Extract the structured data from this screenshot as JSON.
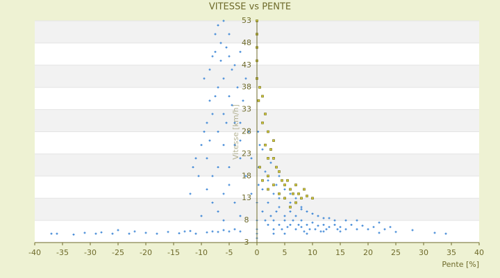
{
  "chart_data": {
    "type": "scatter",
    "title": "VITESSE vs PENTE",
    "x_label": "Pente [%]",
    "y_label": "Vitesse [km/h]",
    "xlim": [
      -40,
      40
    ],
    "xticks": [
      -40,
      -35,
      -30,
      -25,
      -20,
      -15,
      -10,
      -5,
      0,
      5,
      10,
      15,
      20,
      25,
      30,
      35,
      40
    ],
    "ylim": [
      3,
      53
    ],
    "yticks": [
      3,
      8,
      13,
      18,
      23,
      28,
      33,
      38,
      43,
      48,
      53
    ],
    "grid": true,
    "series": [
      {
        "color": "#3d86d6",
        "x": [
          -37,
          -36,
          -33,
          -31,
          -29,
          -28,
          -26,
          -25,
          -23,
          -22,
          -20,
          -18,
          -16,
          -14,
          -13,
          -12,
          -11,
          -9,
          -8,
          -7,
          -6,
          -5,
          -4,
          -3,
          22,
          25,
          28,
          32,
          34,
          -9,
          -8.5,
          -8,
          -7.5,
          -7,
          -6.5,
          -6,
          -5.5,
          -5,
          -4.5,
          -6,
          -7,
          -8,
          -9.5,
          -10,
          -11,
          -11.5,
          -10.5,
          -9,
          -8,
          -7,
          -6,
          -5,
          -4,
          -3,
          -2.5,
          -3.5,
          -4,
          -5,
          -6.5,
          -7.5,
          -8.5,
          -9,
          -7,
          -6,
          -5,
          -4,
          -3,
          -2,
          -1.5,
          -2,
          -3,
          -6,
          -7,
          -8,
          -5,
          -4,
          -3,
          -6,
          -10,
          -12,
          -9.5,
          -8.5,
          -7.5,
          -5.5,
          -4.5,
          -3,
          -1,
          -1,
          0,
          0,
          0,
          0,
          0,
          0.3,
          0.3,
          0.5,
          0.2,
          1,
          1.5,
          2,
          2,
          2.5,
          3,
          3,
          3.5,
          4,
          4,
          4.5,
          5,
          5,
          5.5,
          6,
          6,
          6.5,
          7,
          7,
          7.5,
          8,
          8,
          8.5,
          9,
          9.5,
          10,
          10.5,
          11,
          11.5,
          12,
          12.5,
          13,
          14,
          14.5,
          15,
          16,
          17,
          18,
          19,
          20,
          21,
          22,
          23,
          24,
          3,
          4,
          2,
          1.5,
          2.5,
          3.5,
          5,
          6,
          7,
          8,
          9,
          10,
          11,
          12,
          13,
          14,
          16,
          18,
          1,
          1,
          4,
          6,
          8,
          3,
          5,
          9,
          12,
          15
        ],
        "values": [
          5,
          5,
          4.8,
          5.2,
          5,
          5.3,
          5,
          5.8,
          5,
          5.5,
          5.2,
          5,
          5.4,
          5.1,
          5.5,
          5.6,
          5,
          5.3,
          5.5,
          5.4,
          5.8,
          5.5,
          6,
          5.5,
          5.2,
          5.4,
          5.8,
          5.2,
          5,
          30,
          35,
          45,
          50,
          52,
          48,
          53,
          47,
          45,
          42,
          40,
          38,
          32,
          28,
          25,
          22,
          20,
          18,
          15,
          12,
          10,
          14,
          20,
          25,
          30,
          35,
          38,
          43,
          50,
          44,
          36,
          26,
          22,
          28,
          32,
          36,
          30,
          22,
          18,
          28,
          40,
          46,
          25,
          20,
          18,
          16,
          12,
          9,
          8,
          9,
          14,
          40,
          42,
          46,
          30,
          34,
          26,
          14,
          22,
          4,
          5,
          6,
          8,
          12,
          16,
          20,
          25,
          28,
          10,
          8,
          7,
          12,
          9,
          6,
          8,
          10,
          7,
          11,
          6,
          8,
          9,
          6.5,
          7,
          10,
          8,
          6,
          9,
          7,
          6.5,
          8,
          5.5,
          7,
          6,
          7.5,
          6,
          6.8,
          5.5,
          7,
          6,
          6.5,
          7,
          6,
          6.5,
          6,
          7,
          6,
          6.8,
          6,
          6.5,
          7.5,
          6,
          6.5,
          14,
          13,
          17,
          19,
          21,
          16,
          15,
          12,
          13,
          11,
          10,
          9.5,
          9,
          8.5,
          8.5,
          8,
          8,
          8,
          24,
          15,
          18,
          14,
          10.5,
          5,
          5,
          5,
          5.5,
          5.5
        ]
      },
      {
        "color": "#d4cc3a",
        "x": [
          0,
          0,
          0,
          0,
          0,
          0.5,
          0.3,
          1,
          1.5,
          1,
          2,
          1.5,
          2.5,
          3,
          3.5,
          2,
          4,
          4.5,
          5,
          5.5,
          6,
          6.5,
          7,
          7.5,
          8,
          8.5,
          9,
          10,
          7,
          6,
          5,
          4,
          3,
          2,
          1,
          0.5,
          3,
          2
        ],
        "values": [
          53,
          50,
          47,
          44,
          40,
          38,
          35,
          36,
          32,
          30,
          28,
          25,
          24,
          22,
          20,
          18,
          19,
          17,
          16,
          17,
          15,
          14,
          16,
          14,
          13,
          15,
          13.5,
          13,
          12,
          11,
          13,
          14,
          16,
          15,
          17,
          20,
          26,
          22
        ]
      }
    ]
  }
}
